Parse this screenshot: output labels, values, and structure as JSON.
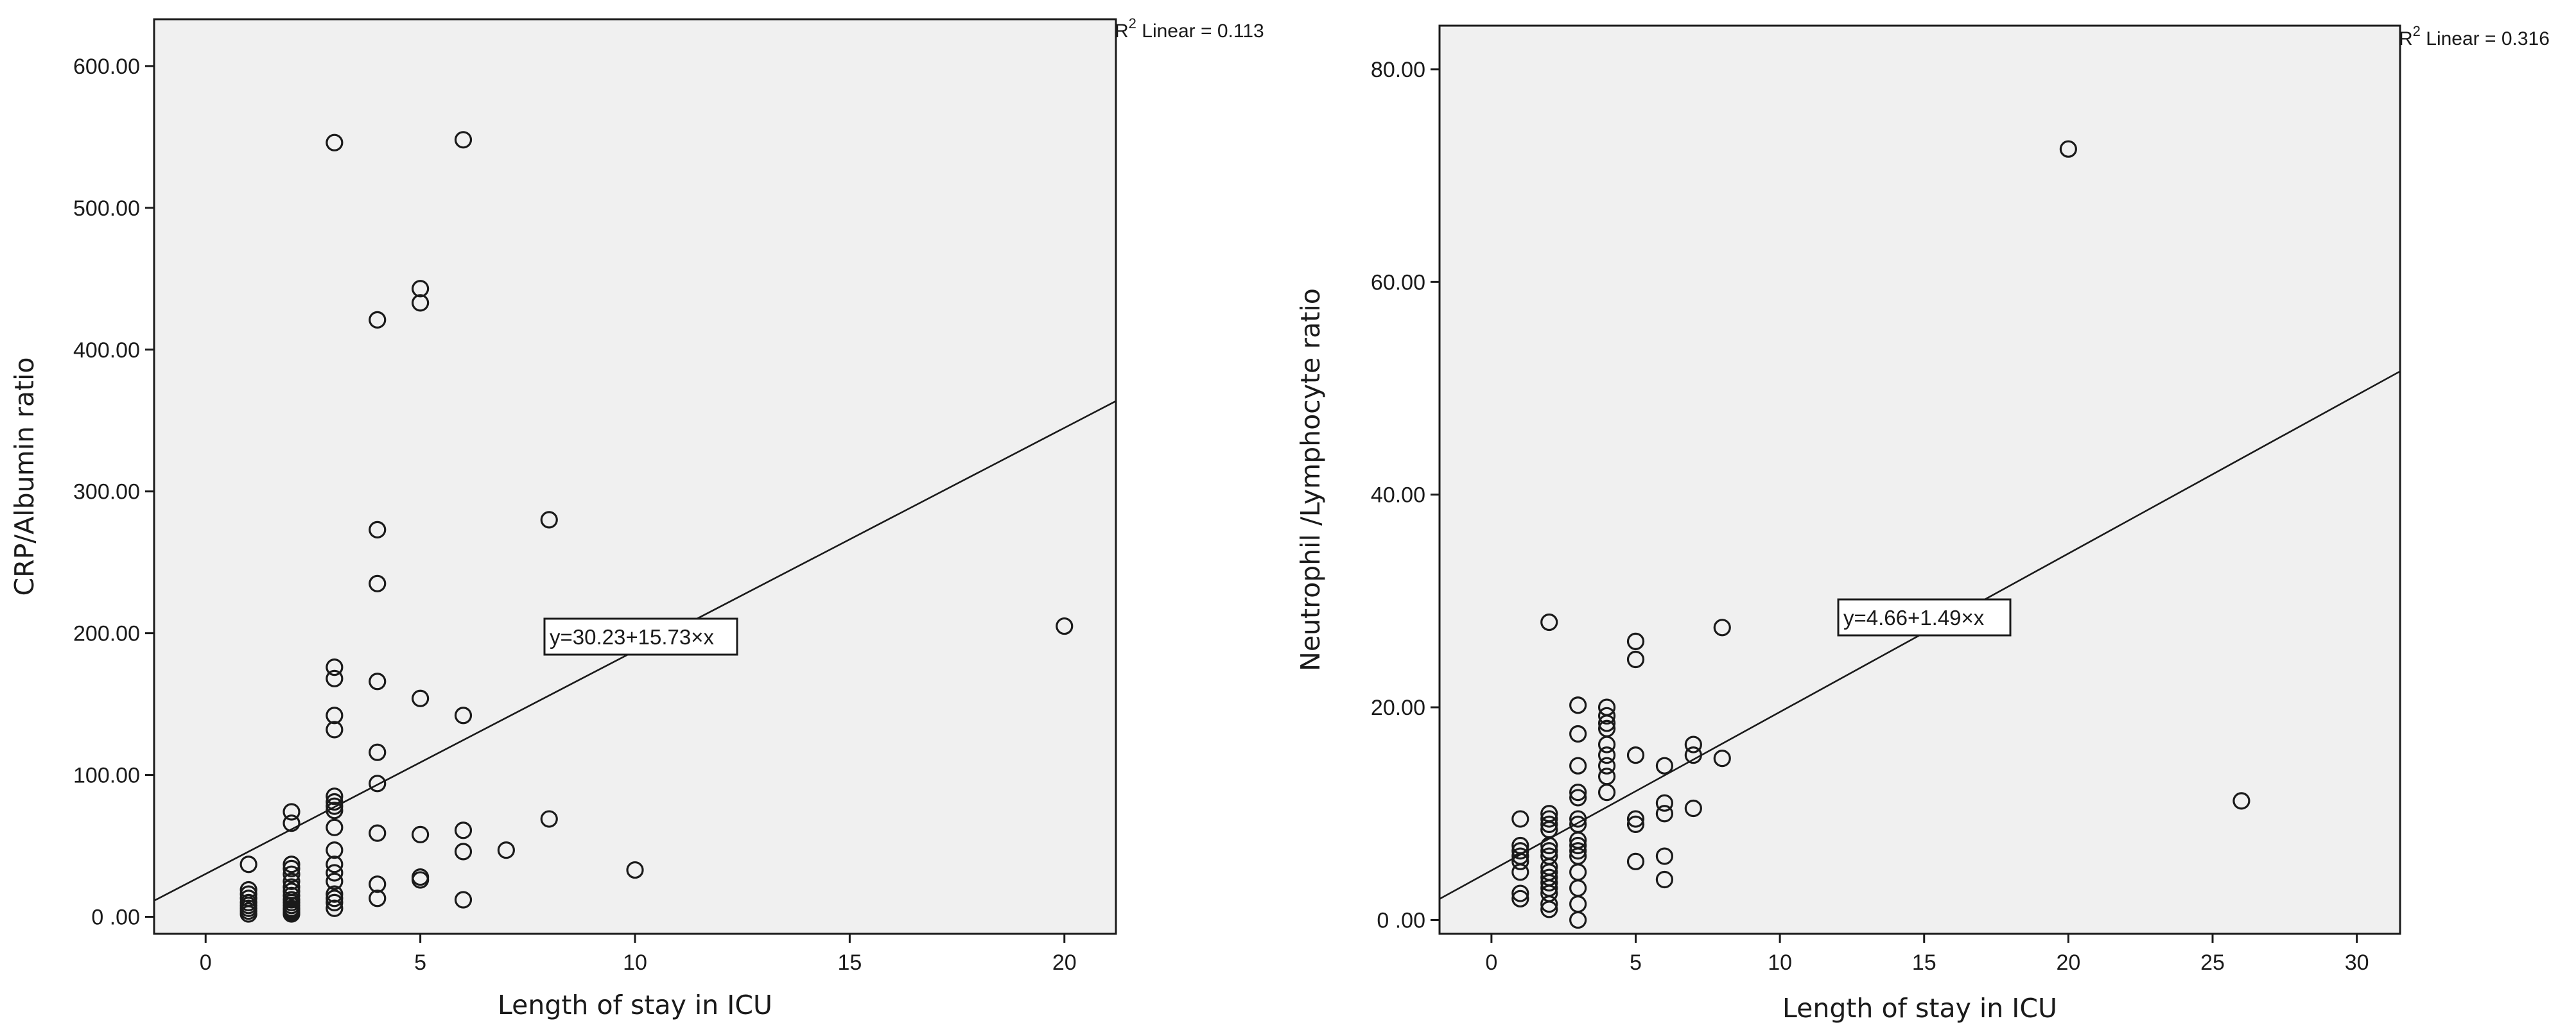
{
  "chart_data": [
    {
      "type": "scatter",
      "xlabel": "Length of stay in ICU",
      "ylabel": "CRP/Albumin ratio",
      "xlim": [
        -1.2,
        21.2
      ],
      "ylim": [
        -12,
        633
      ],
      "x_ticks": [
        0,
        5,
        10,
        15,
        20
      ],
      "x_tick_labels": [
        "0",
        "5",
        "10",
        "15",
        "20"
      ],
      "y_ticks": [
        0,
        100,
        200,
        300,
        400,
        500,
        600
      ],
      "y_tick_labels": [
        "0 .00",
        "100.00",
        "200.00",
        "300.00",
        "400.00",
        "500.00",
        "600.00"
      ],
      "fit": {
        "intercept": 30.23,
        "slope": 15.73
      },
      "equation_label": "y=30.23+15.73×x",
      "r2_label": {
        "prefix": "R",
        "sup": "2",
        "rest": " Linear = 0.113"
      },
      "grid": false,
      "points": [
        [
          1,
          2
        ],
        [
          1,
          4
        ],
        [
          1,
          6
        ],
        [
          1,
          8
        ],
        [
          1,
          10
        ],
        [
          1,
          13
        ],
        [
          1,
          16
        ],
        [
          1,
          19
        ],
        [
          1,
          37
        ],
        [
          2,
          2
        ],
        [
          2,
          3
        ],
        [
          2,
          4
        ],
        [
          2,
          5
        ],
        [
          2,
          6
        ],
        [
          2,
          8
        ],
        [
          2,
          10
        ],
        [
          2,
          12
        ],
        [
          2,
          15
        ],
        [
          2,
          18
        ],
        [
          2,
          21
        ],
        [
          2,
          25
        ],
        [
          2,
          30
        ],
        [
          2,
          34
        ],
        [
          2,
          37
        ],
        [
          2,
          66
        ],
        [
          2,
          74
        ],
        [
          3,
          6
        ],
        [
          3,
          10
        ],
        [
          3,
          13
        ],
        [
          3,
          16
        ],
        [
          3,
          25
        ],
        [
          3,
          31
        ],
        [
          3,
          37
        ],
        [
          3,
          47
        ],
        [
          3,
          63
        ],
        [
          3,
          75
        ],
        [
          3,
          78
        ],
        [
          3,
          81
        ],
        [
          3,
          85
        ],
        [
          3,
          132
        ],
        [
          3,
          142
        ],
        [
          3,
          168
        ],
        [
          3,
          176
        ],
        [
          3,
          546
        ],
        [
          4,
          13
        ],
        [
          4,
          23
        ],
        [
          4,
          59
        ],
        [
          4,
          94
        ],
        [
          4,
          116
        ],
        [
          4,
          166
        ],
        [
          4,
          235
        ],
        [
          4,
          273
        ],
        [
          4,
          421
        ],
        [
          5,
          26
        ],
        [
          5,
          28
        ],
        [
          5,
          58
        ],
        [
          5,
          154
        ],
        [
          5,
          433
        ],
        [
          5,
          443
        ],
        [
          6,
          12
        ],
        [
          6,
          46
        ],
        [
          6,
          61
        ],
        [
          6,
          142
        ],
        [
          6,
          548
        ],
        [
          7,
          47
        ],
        [
          8,
          69
        ],
        [
          8,
          280
        ],
        [
          10,
          33
        ],
        [
          20,
          205
        ]
      ]
    },
    {
      "type": "scatter",
      "xlabel": "Length of stay in ICU",
      "ylabel": "Neutrophil /Lymphocyte ratio",
      "xlim": [
        -1.8,
        31.5
      ],
      "ylim": [
        -1.3,
        84.1
      ],
      "x_ticks": [
        0,
        5,
        10,
        15,
        20,
        25,
        30
      ],
      "x_tick_labels": [
        "0",
        "5",
        "10",
        "15",
        "20",
        "25",
        "30"
      ],
      "y_ticks": [
        0,
        20,
        40,
        60,
        80
      ],
      "y_tick_labels": [
        "0 .00",
        "20.00",
        "40.00",
        "60.00",
        "80.00"
      ],
      "fit": {
        "intercept": 4.66,
        "slope": 1.49
      },
      "equation_label": "y=4.66+1.49×x",
      "r2_label": {
        "prefix": "R",
        "sup": "2",
        "rest": " Linear = 0.316"
      },
      "grid": false,
      "points": [
        [
          1,
          2
        ],
        [
          1,
          2.5
        ],
        [
          1,
          4.5
        ],
        [
          1,
          5.5
        ],
        [
          1,
          6
        ],
        [
          1,
          6.5
        ],
        [
          1,
          7
        ],
        [
          1,
          9.5
        ],
        [
          2,
          1
        ],
        [
          2,
          1.5
        ],
        [
          2,
          2.5
        ],
        [
          2,
          3
        ],
        [
          2,
          3.5
        ],
        [
          2,
          4
        ],
        [
          2,
          4.5
        ],
        [
          2,
          5
        ],
        [
          2,
          6
        ],
        [
          2,
          6.5
        ],
        [
          2,
          7
        ],
        [
          2,
          8.5
        ],
        [
          2,
          9
        ],
        [
          2,
          9.5
        ],
        [
          2,
          10
        ],
        [
          2,
          28
        ],
        [
          3,
          0
        ],
        [
          3,
          1.5
        ],
        [
          3,
          3
        ],
        [
          3,
          4.5
        ],
        [
          3,
          6
        ],
        [
          3,
          6.5
        ],
        [
          3,
          7
        ],
        [
          3,
          7.5
        ],
        [
          3,
          9
        ],
        [
          3,
          9.5
        ],
        [
          3,
          11.5
        ],
        [
          3,
          12
        ],
        [
          3,
          14.5
        ],
        [
          3,
          17.5
        ],
        [
          3,
          20.2
        ],
        [
          4,
          12
        ],
        [
          4,
          13.5
        ],
        [
          4,
          14.5
        ],
        [
          4,
          15.5
        ],
        [
          4,
          16.5
        ],
        [
          4,
          18
        ],
        [
          4,
          18.5
        ],
        [
          4,
          19.2
        ],
        [
          4,
          20
        ],
        [
          5,
          5.5
        ],
        [
          5,
          9
        ],
        [
          5,
          9.5
        ],
        [
          5,
          15.5
        ],
        [
          5,
          24.5
        ],
        [
          5,
          26.2
        ],
        [
          6,
          3.8
        ],
        [
          6,
          6
        ],
        [
          6,
          10
        ],
        [
          6,
          11
        ],
        [
          6,
          14.5
        ],
        [
          7,
          10.5
        ],
        [
          7,
          15.5
        ],
        [
          7,
          16.5
        ],
        [
          8,
          15.2
        ],
        [
          8,
          27.5
        ],
        [
          20,
          72.5
        ],
        [
          26,
          11.2
        ]
      ]
    }
  ]
}
